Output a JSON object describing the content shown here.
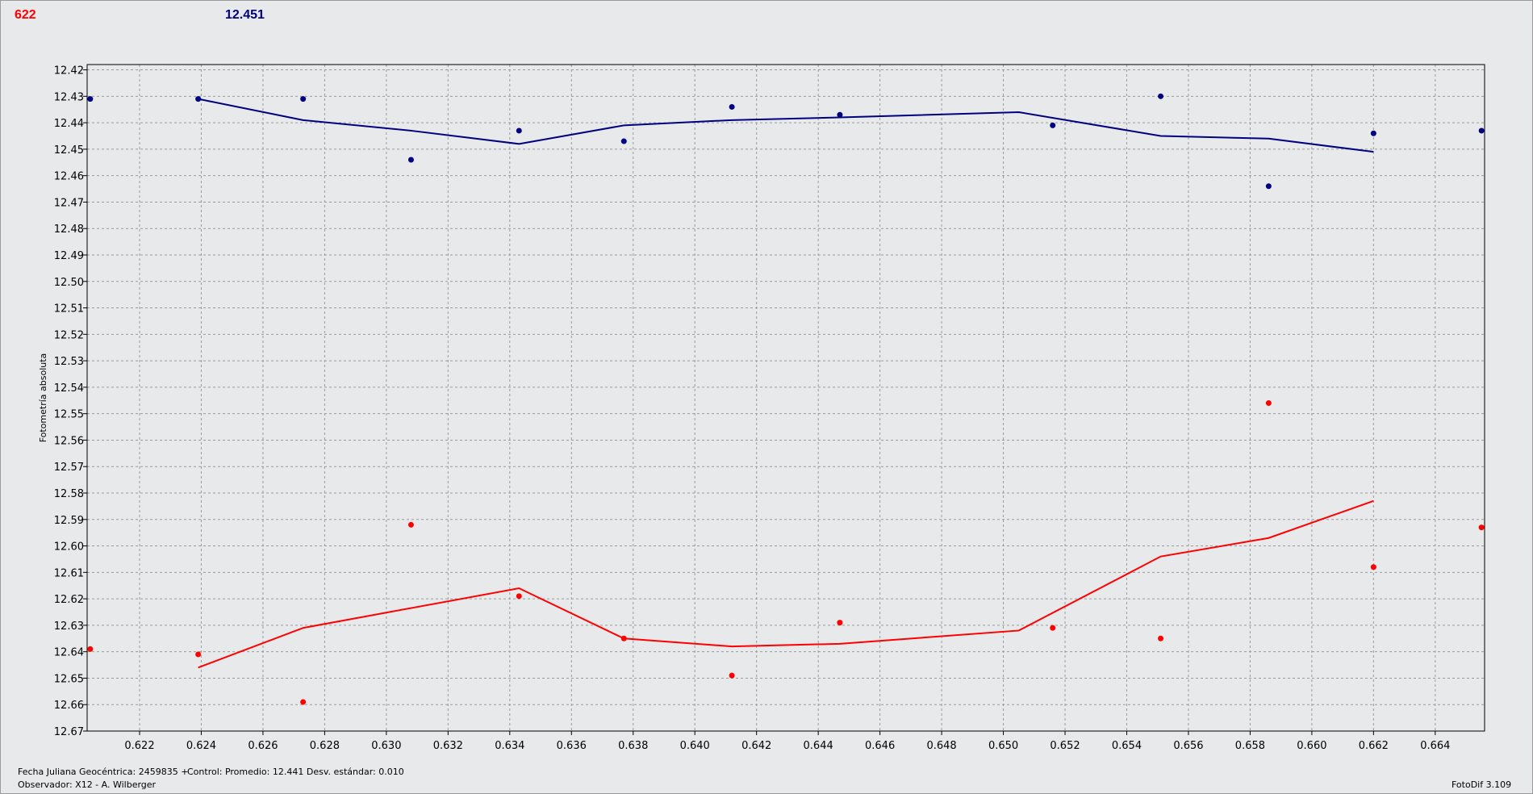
{
  "header": {
    "left_value": "622",
    "right_value": "12.451"
  },
  "footer": {
    "julian_date": "Fecha Juliana Geocéntrica: 2459835 +",
    "control_stats": "Control: Promedio: 12.441  Desv. estándar: 0.010",
    "observer": "Observador: X12 - A. Wilberger",
    "software": "FotoDif 3.109"
  },
  "colors": {
    "series_red": "#ff0000",
    "series_navy": "#000080",
    "grid": "#9a9a9a",
    "plot_bg": "#e8e9ea"
  },
  "chart_data": {
    "type": "line",
    "ylabel": "Fotometría absoluta",
    "xlabel": "",
    "xlim": [
      0.6203,
      0.6656
    ],
    "ylim": [
      12.67,
      12.418
    ],
    "y_inverted": true,
    "grid": true,
    "x_ticks": [
      "0.622",
      "0.624",
      "0.626",
      "0.628",
      "0.630",
      "0.632",
      "0.634",
      "0.636",
      "0.638",
      "0.640",
      "0.642",
      "0.644",
      "0.646",
      "0.648",
      "0.650",
      "0.652",
      "0.654",
      "0.656",
      "0.658",
      "0.660",
      "0.662",
      "0.664"
    ],
    "y_ticks": [
      "12.42",
      "12.43",
      "12.44",
      "12.45",
      "12.46",
      "12.47",
      "12.48",
      "12.49",
      "12.50",
      "12.51",
      "12.52",
      "12.53",
      "12.54",
      "12.55",
      "12.56",
      "12.57",
      "12.58",
      "12.59",
      "12.60",
      "12.61",
      "12.62",
      "12.63",
      "12.64",
      "12.65",
      "12.66",
      "12.67"
    ],
    "series": [
      {
        "color": "#000080",
        "points": [
          [
            0.6204,
            12.431
          ],
          [
            0.6239,
            12.431
          ],
          [
            0.6273,
            12.431
          ],
          [
            0.6308,
            12.454
          ],
          [
            0.6343,
            12.443
          ],
          [
            0.6377,
            12.447
          ],
          [
            0.6412,
            12.434
          ],
          [
            0.6447,
            12.437
          ],
          [
            0.6516,
            12.441
          ],
          [
            0.6551,
            12.43
          ],
          [
            0.6586,
            12.464
          ],
          [
            0.662,
            12.444
          ],
          [
            0.6655,
            12.443
          ]
        ],
        "line": [
          [
            0.6239,
            12.431
          ],
          [
            0.6273,
            12.439
          ],
          [
            0.6308,
            12.443
          ],
          [
            0.6343,
            12.448
          ],
          [
            0.6377,
            12.441
          ],
          [
            0.6412,
            12.439
          ],
          [
            0.6447,
            12.438
          ],
          [
            0.6505,
            12.436
          ],
          [
            0.6551,
            12.445
          ],
          [
            0.6586,
            12.446
          ],
          [
            0.662,
            12.451
          ]
        ]
      },
      {
        "color": "#ff0000",
        "points": [
          [
            0.6204,
            12.639
          ],
          [
            0.6239,
            12.641
          ],
          [
            0.6273,
            12.659
          ],
          [
            0.6308,
            12.592
          ],
          [
            0.6343,
            12.619
          ],
          [
            0.6377,
            12.635
          ],
          [
            0.6412,
            12.649
          ],
          [
            0.6447,
            12.629
          ],
          [
            0.6516,
            12.631
          ],
          [
            0.6551,
            12.635
          ],
          [
            0.6586,
            12.546
          ],
          [
            0.662,
            12.608
          ],
          [
            0.6655,
            12.593
          ]
        ],
        "line": [
          [
            0.6239,
            12.646
          ],
          [
            0.6273,
            12.631
          ],
          [
            0.6343,
            12.616
          ],
          [
            0.6377,
            12.635
          ],
          [
            0.6412,
            12.638
          ],
          [
            0.6447,
            12.637
          ],
          [
            0.6505,
            12.632
          ],
          [
            0.6551,
            12.604
          ],
          [
            0.6586,
            12.597
          ],
          [
            0.662,
            12.583
          ]
        ]
      }
    ]
  }
}
